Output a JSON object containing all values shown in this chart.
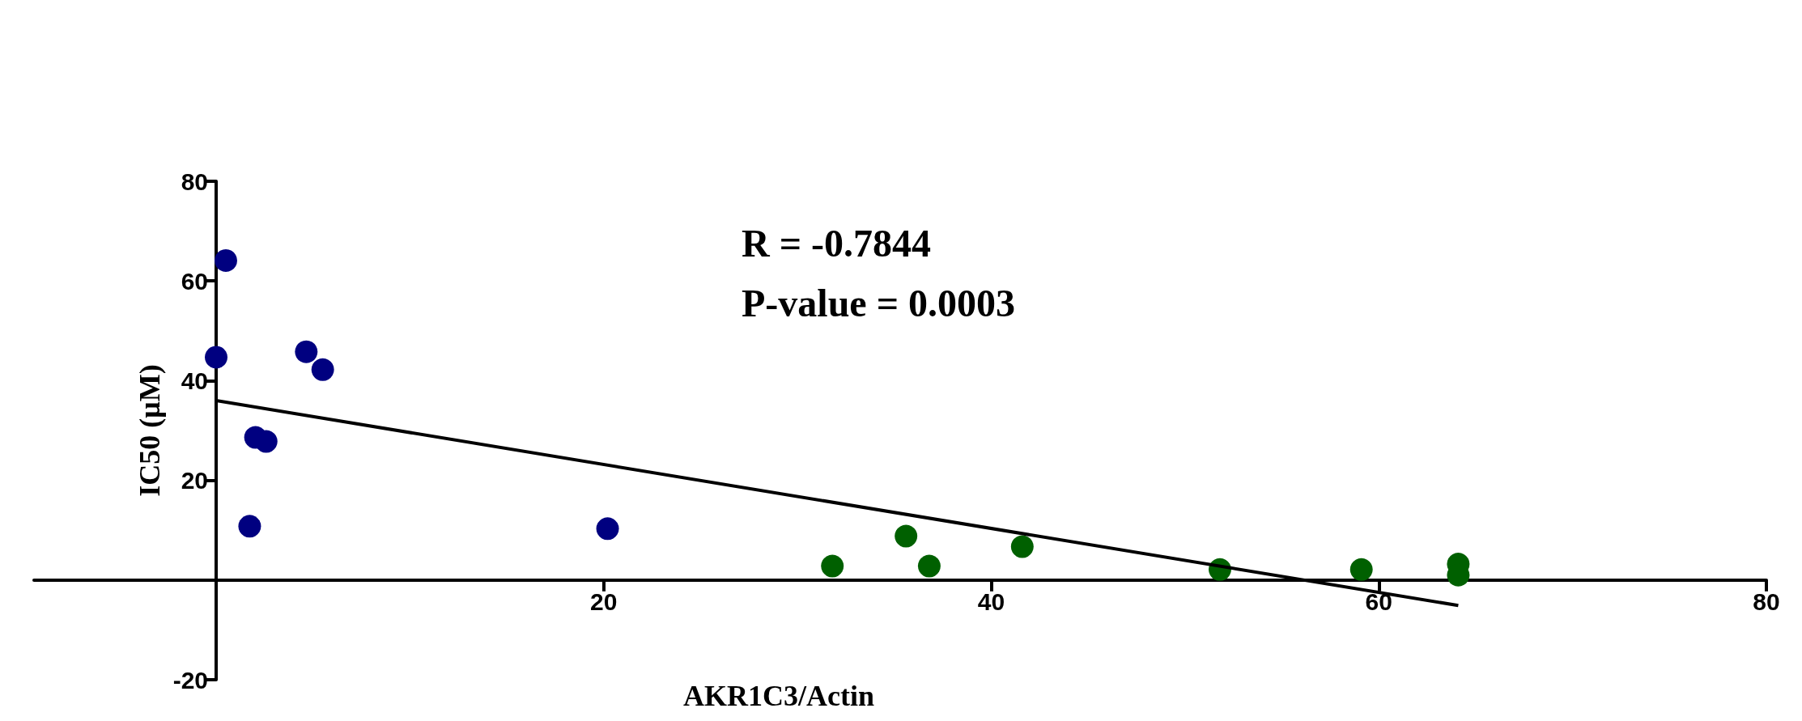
{
  "chart_data": {
    "type": "scatter",
    "xlabel": "AKR1C3/Actin",
    "ylabel": "IC50 (μM)",
    "annotations": [
      "R = -0.7844",
      "P-value = 0.0003"
    ],
    "grid": false,
    "xlim": [
      -9.4,
      80
    ],
    "xticks": [
      20,
      40,
      60,
      80
    ],
    "ylim": [
      -20,
      80
    ],
    "yticks": [
      -20,
      20,
      40,
      60,
      80
    ],
    "series": [
      {
        "color": "#000080",
        "marker": "circle",
        "x": [
          0.5,
          0,
          4.65,
          5.5,
          2.03,
          2.58,
          1.73,
          20.2
        ],
        "values": [
          64.1,
          44.7,
          45.8,
          42.2,
          28.6,
          27.8,
          10.8,
          10.3
        ]
      },
      {
        "color": "#006000",
        "marker": "circle",
        "x": [
          31.8,
          35.6,
          36.8,
          41.6,
          51.8,
          59.1,
          64.1,
          64.1
        ],
        "values": [
          2.8,
          8.8,
          2.8,
          6.7,
          2.1,
          2.1,
          3.2,
          1.0
        ]
      },
      {
        "type": "line",
        "color": "#000000",
        "x": [
          0,
          64.1
        ],
        "values": [
          36,
          -5.1
        ]
      }
    ]
  }
}
